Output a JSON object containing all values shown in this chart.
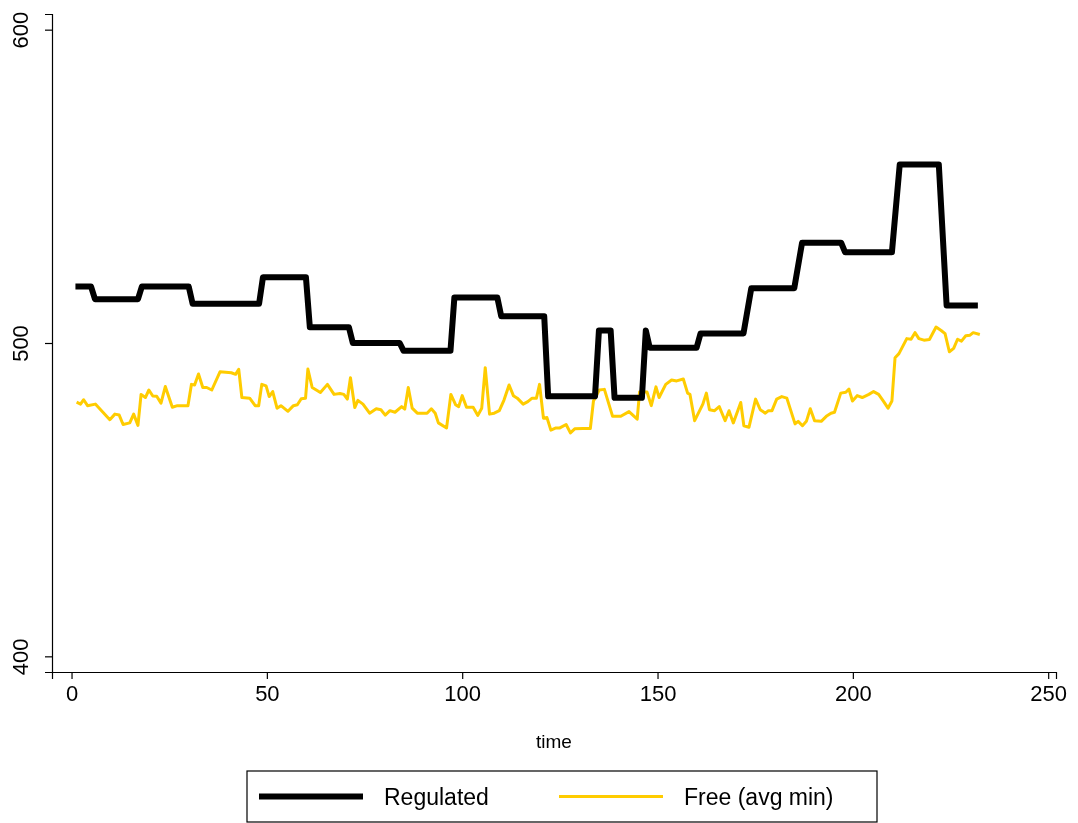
{
  "chart_data": {
    "type": "line",
    "xlabel": "time",
    "xlim": [
      -5,
      252
    ],
    "xticks": [
      0,
      50,
      100,
      150,
      200,
      250
    ],
    "ylim": [
      395,
      605
    ],
    "yticks": [
      400,
      500,
      600
    ],
    "grid": false,
    "legend": "bottom",
    "marker": "none",
    "line_style": "solid",
    "series": [
      {
        "name": "Regulated",
        "color": "#000000",
        "x": [
          1,
          5,
          6,
          17,
          18,
          30,
          31,
          48,
          49,
          60,
          61,
          71,
          72,
          84,
          85,
          97,
          98,
          109,
          110,
          121,
          122,
          134,
          135,
          138,
          139,
          146,
          147,
          148,
          160,
          161,
          172,
          174,
          185,
          187,
          197,
          198,
          210,
          212,
          222,
          224,
          232
        ],
        "values": [
          518,
          518,
          514,
          514,
          518,
          518,
          512.5,
          512.5,
          521,
          521,
          505,
          505,
          500,
          500,
          497.5,
          497.5,
          514.5,
          514.5,
          508.5,
          508.5,
          483,
          483,
          504,
          504,
          482.5,
          482.5,
          504,
          498.5,
          498.5,
          503,
          503,
          517.5,
          517.5,
          532,
          532,
          529,
          529,
          557,
          557,
          512,
          512
        ]
      },
      {
        "name": "Free (avg min)",
        "color": "#ffcc00",
        "x": [
          1.3,
          2.3,
          3.1,
          4.1,
          6.1,
          9.8,
          11.1,
          12.2,
          13.2,
          14.9,
          15.9,
          17,
          17.8,
          18.9,
          19.8,
          20.8,
          21.8,
          22.9,
          24,
          25.8,
          27.1,
          29.8,
          30.7,
          31.5,
          32.5,
          33.6,
          34.6,
          35.9,
          38,
          40.9,
          42,
          42.8,
          43.6,
          45.6,
          47,
          47.9,
          48.7,
          49.8,
          50.6,
          51.5,
          52.6,
          53.6,
          55.4,
          56.8,
          57.8,
          58.8,
          59.9,
          60.5,
          61.6,
          63.7,
          65.5,
          67.2,
          68.7,
          69.7,
          70.6,
          71.4,
          72.5,
          73.3,
          74.6,
          76.3,
          78,
          79.2,
          80.3,
          81.5,
          82.8,
          84.5,
          85.3,
          86.2,
          87.2,
          88.5,
          91,
          92.1,
          93.1,
          93.9,
          96,
          97.1,
          98.3,
          99.1,
          100,
          101.1,
          102.8,
          104,
          105,
          105.9,
          107,
          108.2,
          109.5,
          110.7,
          112,
          113.1,
          114.1,
          115.6,
          116.8,
          117.9,
          119,
          119.8,
          120.8,
          121.7,
          122.7,
          124,
          125,
          126.6,
          127.7,
          128.8,
          130.9,
          132.8,
          133.6,
          135.1,
          136.4,
          138.5,
          140.6,
          142.7,
          144.8,
          145.4,
          147.3,
          148.4,
          149.6,
          150.4,
          152.1,
          153.6,
          154.9,
          156.6,
          157.7,
          158.3,
          159.5,
          161.6,
          162.5,
          163.3,
          164.6,
          165.8,
          167.3,
          168.3,
          169.4,
          171.3,
          172.1,
          173.4,
          175.1,
          176.3,
          177.6,
          178.4,
          179.3,
          180.5,
          181.8,
          183.1,
          185.2,
          186,
          187.1,
          188.1,
          189.1,
          190.2,
          191.9,
          193.2,
          194.4,
          195.3,
          196.9,
          198.2,
          199,
          199.9,
          201.1,
          202.4,
          204.1,
          205.3,
          206.6,
          207.9,
          209,
          210,
          210.8,
          211.8,
          213.8,
          214.9,
          215.9,
          216.9,
          218.2,
          219.6,
          221.3,
          222.6,
          223.6,
          224.7,
          225.8,
          226.8,
          227.8,
          228.9,
          230,
          230.8,
          232.5
        ],
        "values": [
          481.1,
          480.5,
          481.9,
          480,
          480.5,
          475.5,
          477.3,
          477,
          474,
          474.5,
          477.3,
          473.7,
          483.6,
          482.6,
          485,
          483.1,
          483,
          480.8,
          486.1,
          479.5,
          480,
          480,
          486.8,
          486.6,
          490.1,
          485.8,
          485.8,
          485,
          490.8,
          490.5,
          490,
          491.6,
          482.6,
          482.4,
          480,
          480,
          486.8,
          486.3,
          482.9,
          484.5,
          479.2,
          480,
          478.2,
          480,
          480.3,
          482.2,
          482.4,
          491.7,
          485.8,
          484.2,
          486.8,
          483.6,
          483.9,
          483.6,
          482.1,
          488.9,
          479.4,
          481.7,
          480.5,
          477.6,
          479,
          478.7,
          477,
          478.4,
          477.9,
          479.7,
          478.9,
          485.8,
          479.2,
          477.6,
          477.6,
          479,
          477.6,
          474.5,
          472.9,
          483.6,
          480.3,
          479.7,
          483.2,
          479.5,
          479.5,
          476.9,
          479.2,
          492.1,
          477.3,
          477.6,
          478.4,
          481.8,
          486.6,
          483.2,
          482.4,
          480.5,
          481.3,
          482.4,
          482.4,
          486.8,
          476,
          476.2,
          472.2,
          472.9,
          472.9,
          474,
          471.3,
          472.6,
          472.7,
          472.7,
          481.5,
          485,
          485.2,
          476.6,
          476.6,
          478.1,
          475.7,
          484.4,
          484.4,
          480,
          486,
          482.6,
          486.8,
          488.2,
          487.9,
          488.5,
          484,
          483.6,
          475.2,
          480.5,
          484,
          478.7,
          478.4,
          479.7,
          475.2,
          478.4,
          474.5,
          481,
          473.6,
          473.1,
          482.1,
          478.7,
          477.6,
          478.4,
          478.4,
          482.1,
          482.9,
          482.4,
          474.2,
          475,
          473.6,
          475,
          479,
          475.2,
          475,
          476.6,
          477.6,
          477.9,
          484,
          484.3,
          485.3,
          481.5,
          483.2,
          482.6,
          483.6,
          484.5,
          483.6,
          481.3,
          479.2,
          481.5,
          495.3,
          496.6,
          501.4,
          501.2,
          503.3,
          501.4,
          500.9,
          501.1,
          505.1,
          504,
          503,
          497.2,
          498.3,
          501.2,
          500.6,
          502.3,
          502.5,
          503.3,
          502.7
        ]
      }
    ]
  }
}
